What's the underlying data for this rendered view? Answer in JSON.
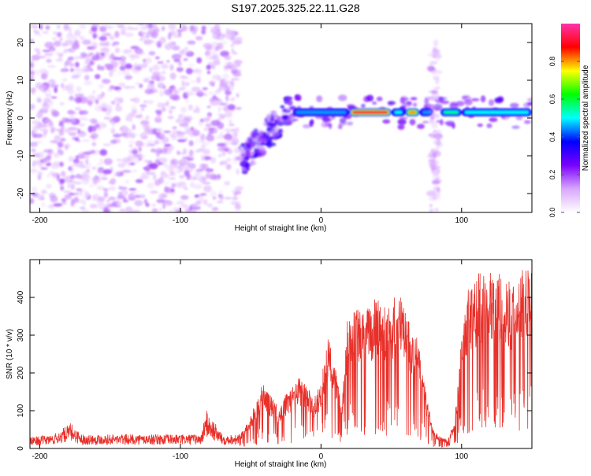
{
  "title": "S197.2025.325.22.11.G28",
  "chart_data": [
    {
      "type": "heatmap",
      "name": "spectrogram",
      "xlabel": "Height of straight line (km)",
      "ylabel": "Frequency (Hz)",
      "xlim": [
        -207,
        150
      ],
      "ylim": [
        -25,
        25
      ],
      "xticks": [
        -200,
        -100,
        0,
        100
      ],
      "yticks": [
        -20,
        -10,
        0,
        10,
        20
      ],
      "colorbar": {
        "label": "Normalized spectral amplitude",
        "range": [
          0.0,
          1.0
        ],
        "ticks": [
          0.0,
          0.2,
          0.4,
          0.6,
          0.8
        ],
        "tick_labels": [
          "0.0",
          "0.2",
          "0.4",
          "0.6",
          "0.8"
        ],
        "colors": [
          "#ffffff",
          "#d9a6ff",
          "#7a00ff",
          "#0000ff",
          "#00ffff",
          "#00ff00",
          "#ffff00",
          "#ff0000",
          "#ff33aa"
        ]
      },
      "regions": [
        {
          "label": "noise",
          "x": [
            -207,
            -58
          ],
          "freq": [
            -25,
            25
          ],
          "amplitude": 0.12
        },
        {
          "label": "chirp",
          "x": [
            -58,
            -20
          ],
          "freq": [
            -14,
            5
          ],
          "amplitude": 0.25
        },
        {
          "label": "carrier",
          "x": [
            -20,
            150
          ],
          "freq": [
            1,
            2
          ],
          "amplitude": 0.75
        },
        {
          "label": "broadband",
          "x": [
            78,
            84
          ],
          "freq": [
            -25,
            20
          ],
          "amplitude": 0.1
        }
      ]
    },
    {
      "type": "line",
      "name": "snr",
      "xlabel": "Height of straight line (km)",
      "ylabel": "SNR (10 * v/v)",
      "xlim": [
        -207,
        150
      ],
      "ylim": [
        0,
        500
      ],
      "xticks": [
        -200,
        -100,
        0,
        100
      ],
      "yticks": [
        0,
        100,
        200,
        300,
        400
      ],
      "color": "#e8302a",
      "series": [
        {
          "name": "SNR",
          "x": [
            -207,
            -190,
            -178,
            -170,
            -150,
            -120,
            -100,
            -85,
            -82,
            -70,
            -58,
            -45,
            -42,
            -30,
            -25,
            -15,
            -10,
            -5,
            0,
            5,
            15,
            18,
            22,
            30,
            40,
            50,
            55,
            60,
            70,
            75,
            80,
            85,
            90,
            95,
            100,
            105,
            110,
            115,
            120,
            125,
            130,
            135,
            140,
            145,
            150
          ],
          "y": [
            20,
            25,
            45,
            25,
            25,
            25,
            25,
            25,
            70,
            25,
            25,
            110,
            150,
            90,
            120,
            160,
            140,
            110,
            150,
            250,
            120,
            270,
            330,
            300,
            340,
            320,
            350,
            310,
            230,
            120,
            40,
            25,
            20,
            60,
            250,
            360,
            380,
            400,
            420,
            380,
            400,
            360,
            380,
            420,
            440
          ]
        }
      ]
    }
  ]
}
